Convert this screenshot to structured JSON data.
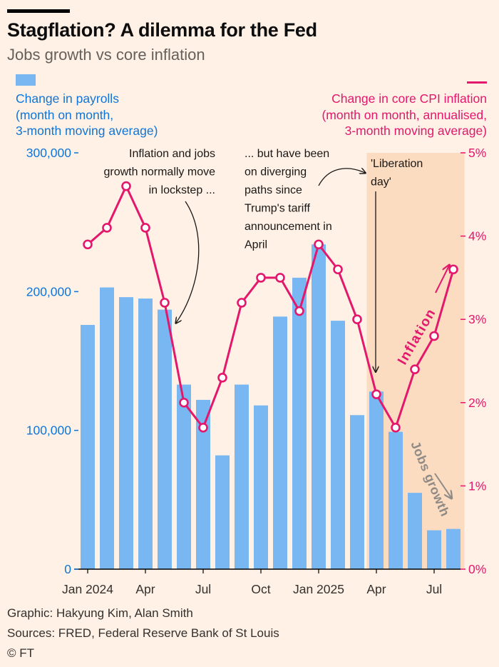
{
  "header": {
    "title": "Stagflation? A dilemma for the Fed",
    "subtitle": "Jobs growth vs core inflation"
  },
  "legend": {
    "left_lines": [
      "Change in payrolls",
      "(month on month,",
      "3-month moving average)"
    ],
    "right_lines": [
      "Change in core CPI inflation",
      "(month on month, annualised,",
      "3-month moving average)"
    ]
  },
  "annotations": {
    "lockstep": [
      "Inflation and jobs",
      "growth normally move",
      "in lockstep ..."
    ],
    "diverging": [
      "... but have been",
      "on diverging",
      "paths since",
      "Trump's tariff",
      "announcement in",
      "April"
    ],
    "liberation": [
      "'Liberation",
      "day'"
    ],
    "inflation_label": "Inflation",
    "jobs_label": "Jobs growth"
  },
  "footer": {
    "graphic": "Graphic: Hakyung Kim, Alan Smith",
    "sources": "Sources: FRED, Federal Reserve Bank of St Louis",
    "copyright": "© FT"
  },
  "colors": {
    "bars": "#79b7f3",
    "line": "#e3176c",
    "left_axis": "#0f75d8",
    "right_axis": "#e3176c",
    "highlight": "#fbdcc0",
    "background": "#fff1e5"
  },
  "chart_data": {
    "type": "bar+line",
    "x": [
      "Jan 2024",
      "Feb 2024",
      "Mar 2024",
      "Apr 2024",
      "May 2024",
      "Jun 2024",
      "Jul 2024",
      "Aug 2024",
      "Sep 2024",
      "Oct 2024",
      "Nov 2024",
      "Dec 2024",
      "Jan 2025",
      "Feb 2025",
      "Mar 2025",
      "Apr 2025",
      "May 2025",
      "Jun 2025",
      "Jul 2025",
      "Aug 2025"
    ],
    "x_tick_labels": [
      "Jan 2024",
      "Apr",
      "Jul",
      "Oct",
      "Jan 2025",
      "Apr",
      "Jul"
    ],
    "x_tick_months": [
      "Jan 2024",
      "Apr 2024",
      "Jul 2024",
      "Oct 2024",
      "Jan 2025",
      "Apr 2025",
      "Jul 2025"
    ],
    "series": [
      {
        "name": "Change in payrolls",
        "kind": "bar",
        "axis": "left",
        "values": [
          176000,
          203000,
          196000,
          195000,
          187000,
          133000,
          122000,
          82000,
          133000,
          118000,
          182000,
          210000,
          234000,
          179000,
          111000,
          128000,
          99000,
          55000,
          28000,
          29000
        ]
      },
      {
        "name": "Change in core CPI inflation",
        "kind": "line",
        "axis": "right",
        "values": [
          3.9,
          4.1,
          4.6,
          4.1,
          3.2,
          2.0,
          1.7,
          2.3,
          3.2,
          3.5,
          3.5,
          3.1,
          3.9,
          3.6,
          3.0,
          2.1,
          1.7,
          2.4,
          2.8,
          3.6
        ]
      }
    ],
    "left_axis": {
      "ticks": [
        0,
        100000,
        200000,
        300000
      ],
      "tick_labels": [
        "0",
        "100,000",
        "200,000",
        "300,000"
      ],
      "ylim": [
        0,
        300000
      ]
    },
    "right_axis": {
      "ticks": [
        0,
        1,
        2,
        3,
        4,
        5
      ],
      "tick_labels": [
        "0%",
        "1%",
        "2%",
        "3%",
        "4%",
        "5%"
      ],
      "ylim": [
        0,
        5
      ]
    },
    "highlight_range": [
      "Apr 2025",
      "Aug 2025"
    ],
    "grid": false
  }
}
